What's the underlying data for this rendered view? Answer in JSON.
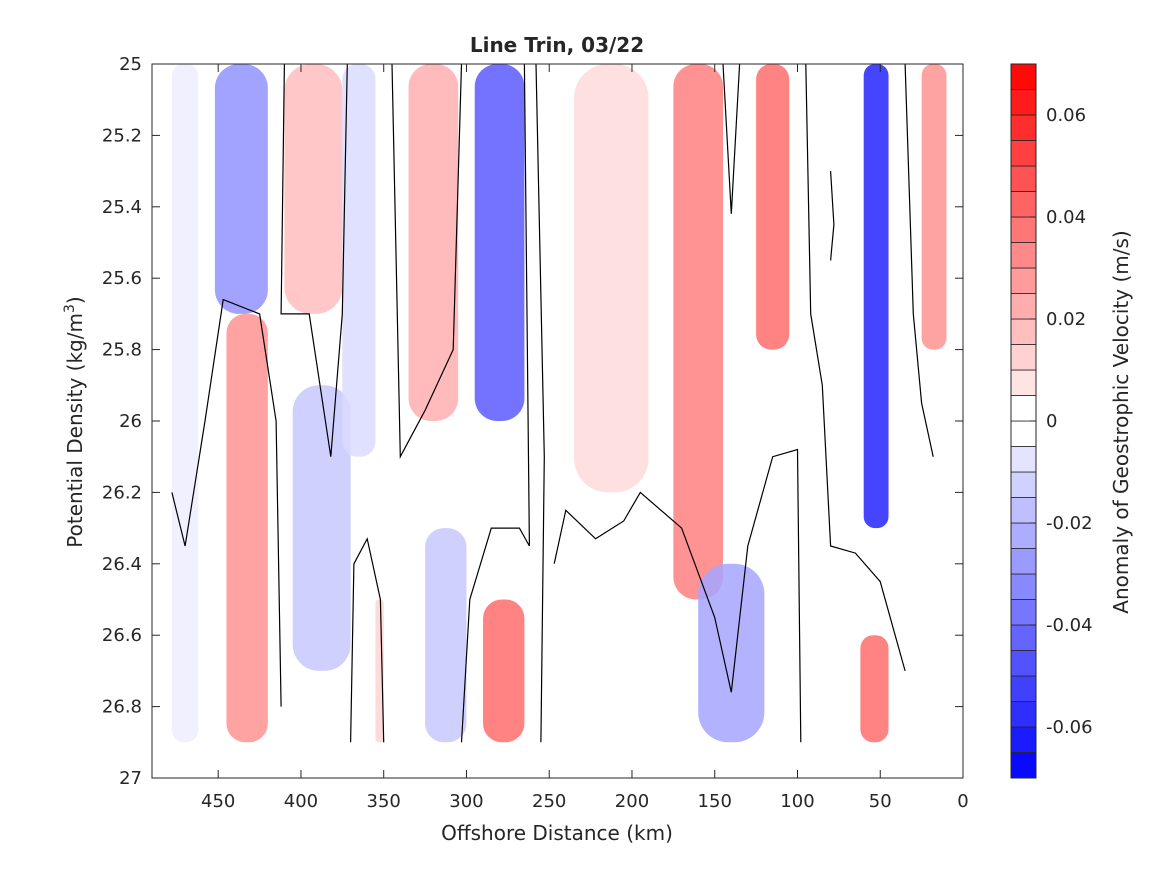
{
  "chart_data": {
    "type": "heatmap",
    "title": "Line Trin, 03/22",
    "xlabel": "Offshore Distance (km)",
    "ylabel": "Potential Density (kg/m",
    "ylabel_sup": "3",
    "ylabel_close": ")",
    "xlim": [
      490,
      0
    ],
    "x_reversed": true,
    "ylim": [
      25,
      27
    ],
    "y_reversed": true,
    "x_ticks": [
      450,
      400,
      350,
      300,
      250,
      200,
      150,
      100,
      50,
      0
    ],
    "y_ticks": [
      "25",
      "25.2",
      "25.4",
      "25.6",
      "25.8",
      "26",
      "26.2",
      "26.4",
      "26.6",
      "26.8",
      "27"
    ],
    "colorbar": {
      "label": "Anomaly of Geostrophic Velocity (m/s)",
      "range": [
        -0.07,
        0.07
      ],
      "levels": 28,
      "ticks": [
        "0.06",
        "0.04",
        "0.02",
        "0",
        "-0.02",
        "-0.04",
        "-0.06"
      ]
    },
    "cells": [
      {
        "x": [
          478,
          462
        ],
        "y": [
          25,
          26.9
        ],
        "v": -0.005
      },
      {
        "x": [
          452,
          420
        ],
        "y": [
          25,
          25.7
        ],
        "v": -0.03
      },
      {
        "x": [
          445,
          420
        ],
        "y": [
          25.7,
          26.9
        ],
        "v": 0.03
      },
      {
        "x": [
          410,
          375
        ],
        "y": [
          25,
          25.7
        ],
        "v": 0.018
      },
      {
        "x": [
          405,
          370
        ],
        "y": [
          25.9,
          26.7
        ],
        "v": -0.015
      },
      {
        "x": [
          375,
          355
        ],
        "y": [
          25,
          26.1
        ],
        "v": -0.01
      },
      {
        "x": [
          355,
          350
        ],
        "y": [
          26.5,
          26.9
        ],
        "v": 0.012
      },
      {
        "x": [
          335,
          305
        ],
        "y": [
          25,
          26.0
        ],
        "v": 0.022
      },
      {
        "x": [
          325,
          300
        ],
        "y": [
          26.3,
          26.9
        ],
        "v": -0.015
      },
      {
        "x": [
          295,
          265
        ],
        "y": [
          25,
          26.0
        ],
        "v": -0.045
      },
      {
        "x": [
          290,
          265
        ],
        "y": [
          26.5,
          26.9
        ],
        "v": 0.04
      },
      {
        "x": [
          235,
          190
        ],
        "y": [
          25,
          26.2
        ],
        "v": 0.01
      },
      {
        "x": [
          175,
          145
        ],
        "y": [
          25,
          26.5
        ],
        "v": 0.035
      },
      {
        "x": [
          160,
          120
        ],
        "y": [
          26.4,
          26.9
        ],
        "v": -0.025
      },
      {
        "x": [
          125,
          105
        ],
        "y": [
          25,
          25.8
        ],
        "v": 0.04
      },
      {
        "x": [
          60,
          45
        ],
        "y": [
          25,
          26.3
        ],
        "v": -0.06
      },
      {
        "x": [
          62,
          45
        ],
        "y": [
          26.6,
          26.9
        ],
        "v": 0.04
      },
      {
        "x": [
          25,
          10
        ],
        "y": [
          25,
          25.8
        ],
        "v": 0.03
      }
    ],
    "zero_contours": [
      [
        [
          478,
          26.2
        ],
        [
          470,
          26.35
        ],
        [
          458,
          26.0
        ],
        [
          447,
          25.66
        ],
        [
          425,
          25.7
        ],
        [
          415,
          26.0
        ],
        [
          412,
          26.8
        ]
      ],
      [
        [
          410,
          25.0
        ],
        [
          412,
          25.7
        ],
        [
          395,
          25.7
        ],
        [
          382,
          26.1
        ],
        [
          375,
          25.7
        ],
        [
          372,
          25.0
        ]
      ],
      [
        [
          370,
          26.9
        ],
        [
          368,
          26.4
        ],
        [
          360,
          26.33
        ],
        [
          352,
          26.5
        ],
        [
          350,
          26.9
        ]
      ],
      [
        [
          345,
          25.0
        ],
        [
          340,
          26.1
        ],
        [
          325,
          25.97
        ],
        [
          308,
          25.8
        ],
        [
          303,
          25.0
        ]
      ],
      [
        [
          303,
          26.9
        ],
        [
          298,
          26.5
        ],
        [
          285,
          26.3
        ],
        [
          268,
          26.3
        ],
        [
          262,
          26.35
        ],
        [
          265,
          25.0
        ]
      ],
      [
        [
          258,
          25.0
        ],
        [
          253,
          26.1
        ],
        [
          255,
          26.9
        ]
      ],
      [
        [
          247,
          26.4
        ],
        [
          240,
          26.25
        ],
        [
          222,
          26.33
        ],
        [
          205,
          26.28
        ],
        [
          195,
          26.2
        ],
        [
          170,
          26.3
        ],
        [
          150,
          26.55
        ],
        [
          140,
          26.76
        ],
        [
          130,
          26.35
        ],
        [
          115,
          26.1
        ],
        [
          100,
          26.08
        ],
        [
          98,
          26.9
        ]
      ],
      [
        [
          145,
          25.0
        ],
        [
          140,
          25.42
        ],
        [
          135,
          25.0
        ]
      ],
      [
        [
          95,
          25.0
        ],
        [
          92,
          25.7
        ],
        [
          85,
          25.9
        ],
        [
          80,
          26.35
        ],
        [
          65,
          26.37
        ],
        [
          50,
          26.45
        ],
        [
          35,
          26.7
        ]
      ],
      [
        [
          35,
          25.0
        ],
        [
          30,
          25.7
        ],
        [
          25,
          25.95
        ],
        [
          18,
          26.1
        ]
      ],
      [
        [
          80,
          25.3
        ],
        [
          78,
          25.45
        ],
        [
          80,
          25.55
        ]
      ]
    ]
  }
}
